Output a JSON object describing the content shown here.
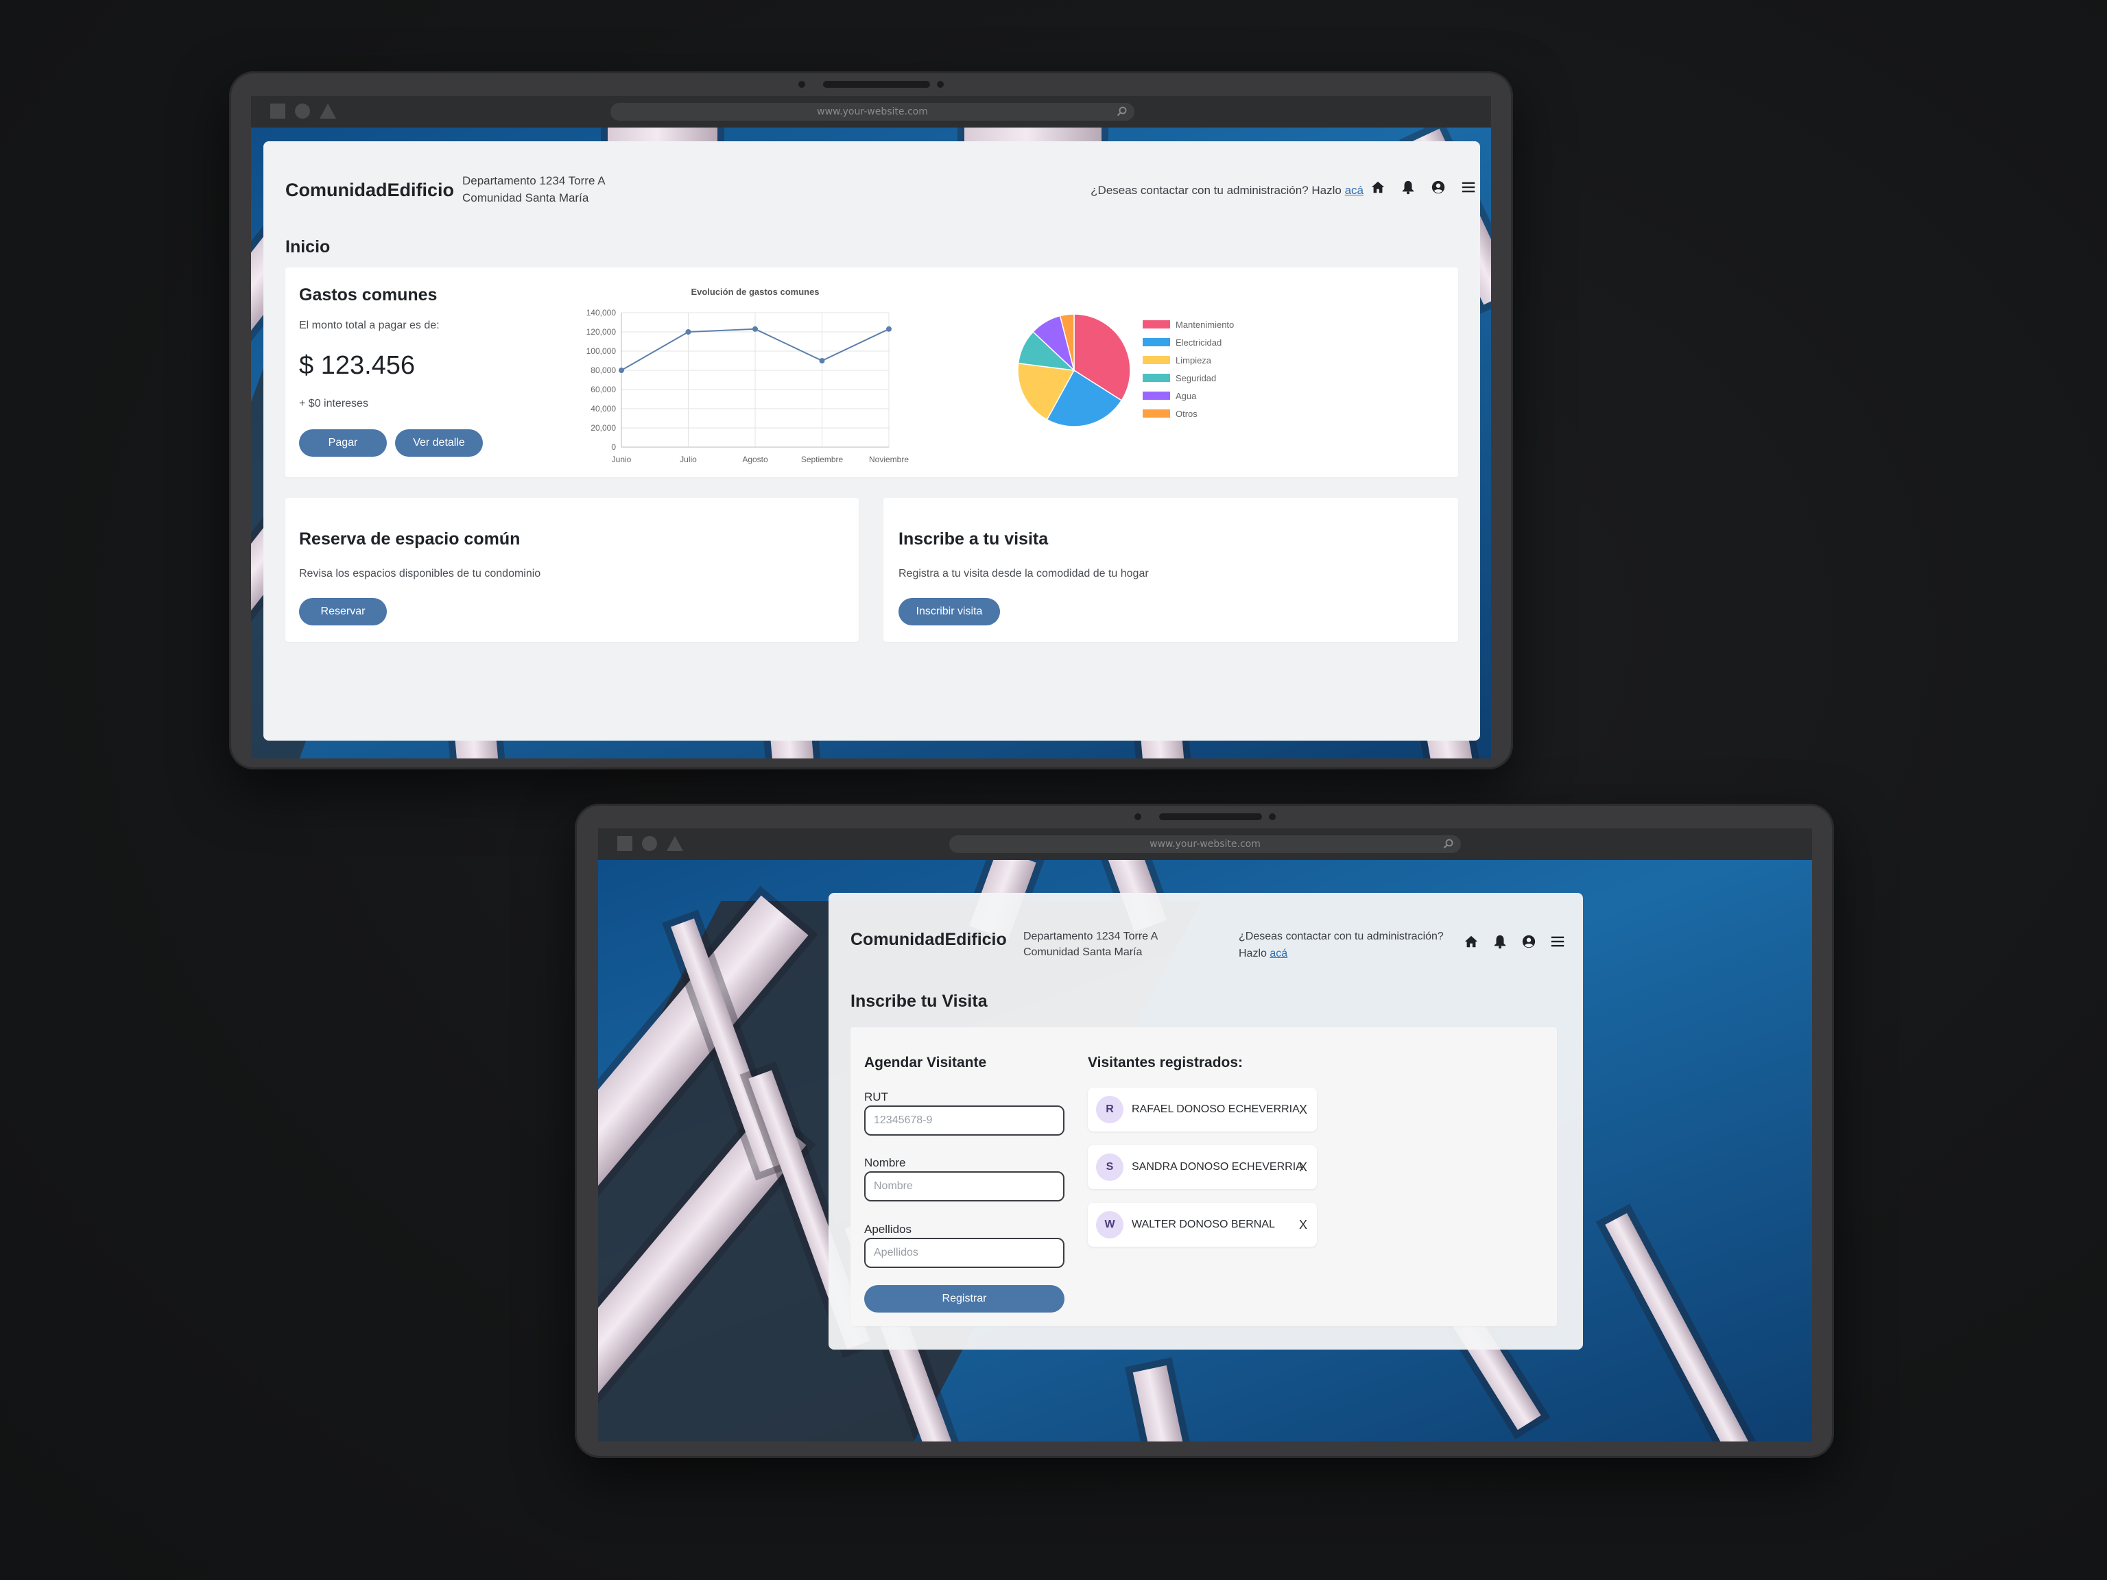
{
  "url": "www.your-website.com",
  "dashboard": {
    "brand": "ComunidadEdificio",
    "address_line1": "Departamento 1234 Torre A",
    "address_line2": "Comunidad Santa María",
    "contact_text": "¿Deseas contactar con tu administración? Hazlo",
    "contact_link": "acá",
    "page_title": "Inicio",
    "gastos": {
      "title": "Gastos comunes",
      "subtitle": "El monto total a pagar es de:",
      "amount": "$ 123.456",
      "interest": "+ $0 intereses",
      "pay_label": "Pagar",
      "detail_label": "Ver detalle"
    },
    "reserva": {
      "title": "Reserva de espacio común",
      "text": "Revisa los espacios disponibles de tu condominio",
      "button": "Reservar"
    },
    "visita": {
      "title": "Inscribe a tu visita",
      "text": "Registra a tu visita desde la comodidad de tu hogar",
      "button": "Inscribir visita"
    }
  },
  "visit_page": {
    "brand": "ComunidadEdificio",
    "address_line1": "Departamento 1234 Torre A",
    "address_line2": "Comunidad Santa María",
    "contact_line1": "¿Deseas contactar con tu administración?",
    "contact_line2": "Hazlo",
    "contact_link": "acá",
    "page_title": "Inscribe tu Visita",
    "form": {
      "title": "Agendar Visitante",
      "rut_label": "RUT",
      "rut_placeholder": "12345678-9",
      "nombre_label": "Nombre",
      "nombre_placeholder": "Nombre",
      "apellidos_label": "Apellidos",
      "apellidos_placeholder": "Apellidos",
      "submit": "Registrar"
    },
    "registered_title": "Visitantes registrados:",
    "visitors": [
      {
        "initial": "R",
        "name": "RAFAEL DONOSO ECHEVERRIA",
        "remove": "X"
      },
      {
        "initial": "S",
        "name": "SANDRA DONOSO ECHEVERRIA",
        "remove": "X"
      },
      {
        "initial": "W",
        "name": "WALTER DONOSO BERNAL",
        "remove": "X"
      }
    ]
  },
  "chart_data": [
    {
      "type": "line",
      "title": "Evolución de gastos comunes",
      "categories": [
        "Junio",
        "Julio",
        "Agosto",
        "Septiembre",
        "Noviembre"
      ],
      "values": [
        80000,
        120000,
        123000,
        90000,
        123000
      ],
      "ylim": [
        0,
        140000
      ],
      "yticks": [
        "140,000",
        "120,000",
        "100,000",
        "80,000",
        "60,000",
        "40,000",
        "20,000",
        "0"
      ],
      "color": "#5b7fad",
      "grid": true
    },
    {
      "type": "pie",
      "labels": [
        "Mantenimiento",
        "Electricidad",
        "Limpieza",
        "Seguridad",
        "Agua",
        "Otros"
      ],
      "values": [
        34,
        24,
        19,
        10,
        9,
        4
      ],
      "colors": [
        "#f2587a",
        "#36a2eb",
        "#ffcd56",
        "#4bc0c0",
        "#9966ff",
        "#ff9f40"
      ],
      "legend": "right"
    }
  ]
}
